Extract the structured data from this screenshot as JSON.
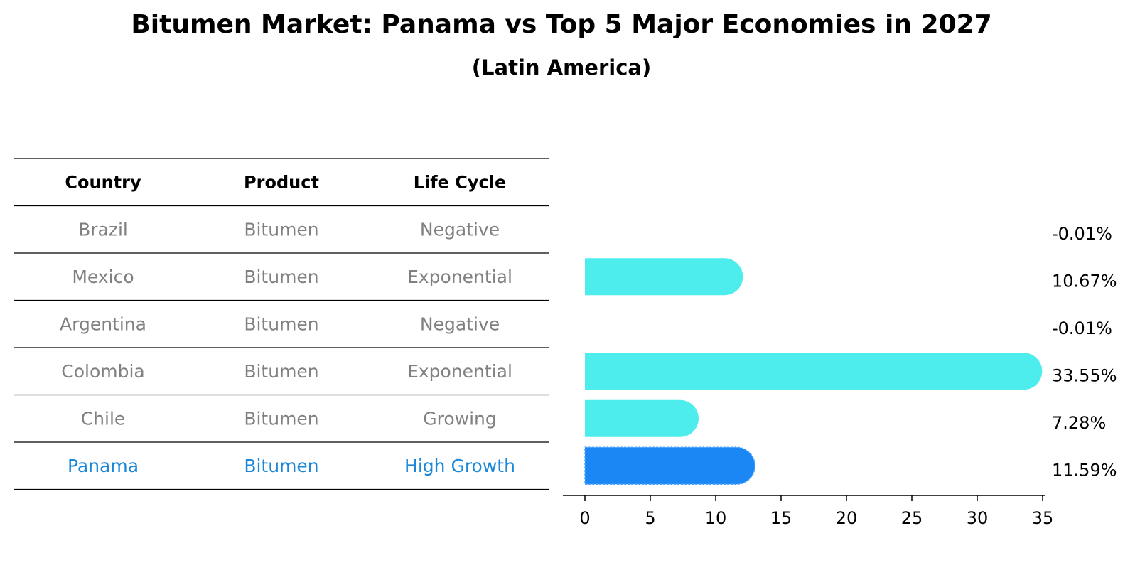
{
  "title": "Bitumen Market: Panama vs Top 5 Major Economies in 2027",
  "subtitle": "(Latin America)",
  "colors": {
    "bar": "#4deded",
    "highlight_bar": "#1a87f5",
    "highlight_text": "#1a87d9",
    "muted_text": "#808080",
    "rule": "#000000"
  },
  "table": {
    "headers": [
      "Country",
      "Product",
      "Life Cycle"
    ],
    "rows": [
      {
        "country": "Brazil",
        "product": "Bitumen",
        "life_cycle": "Negative",
        "highlight": false
      },
      {
        "country": "Mexico",
        "product": "Bitumen",
        "life_cycle": "Exponential",
        "highlight": false
      },
      {
        "country": "Argentina",
        "product": "Bitumen",
        "life_cycle": "Negative",
        "highlight": false
      },
      {
        "country": "Colombia",
        "product": "Bitumen",
        "life_cycle": "Exponential",
        "highlight": false
      },
      {
        "country": "Chile",
        "product": "Bitumen",
        "life_cycle": "Growing",
        "highlight": false
      },
      {
        "country": "Panama",
        "product": "Bitumen",
        "life_cycle": "High Growth",
        "highlight": true
      }
    ]
  },
  "chart_data": {
    "type": "bar",
    "orientation": "horizontal",
    "categories": [
      "Brazil",
      "Mexico",
      "Argentina",
      "Colombia",
      "Chile",
      "Panama"
    ],
    "values": [
      -0.01,
      10.67,
      -0.01,
      33.55,
      7.28,
      11.59
    ],
    "value_labels": [
      "-0.01%",
      "10.67%",
      "-0.01%",
      "33.55%",
      "7.28%",
      "11.59%"
    ],
    "highlight": "Panama",
    "xlim": [
      0,
      35
    ],
    "xticks": [
      0,
      5,
      10,
      15,
      20,
      25,
      30,
      35
    ],
    "xlabel": "",
    "ylabel": "",
    "grid": false,
    "legend": "none"
  }
}
